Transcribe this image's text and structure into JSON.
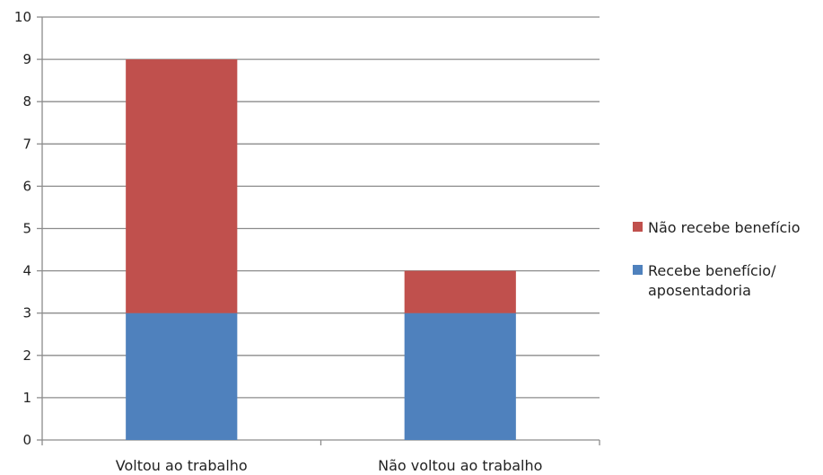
{
  "chart_data": {
    "type": "bar",
    "stacked": true,
    "categories": [
      "Voltou ao trabalho",
      "Não voltou ao trabalho"
    ],
    "series": [
      {
        "name": "Recebe benefício/ aposentadoria",
        "values": [
          3,
          3
        ],
        "color": "#4f81bd"
      },
      {
        "name": "Não recebe benefício",
        "values": [
          6,
          1
        ],
        "color": "#c0504d"
      }
    ],
    "ylim": [
      0,
      10
    ],
    "yticks": [
      0,
      1,
      2,
      3,
      4,
      5,
      6,
      7,
      8,
      9,
      10
    ],
    "grid": true,
    "legend_position": "right"
  },
  "legend": {
    "items": [
      {
        "label": "Não recebe benefício",
        "color": "#c0504d"
      },
      {
        "label": "Recebe benefício/ aposentadoria",
        "color": "#4f81bd"
      }
    ]
  }
}
